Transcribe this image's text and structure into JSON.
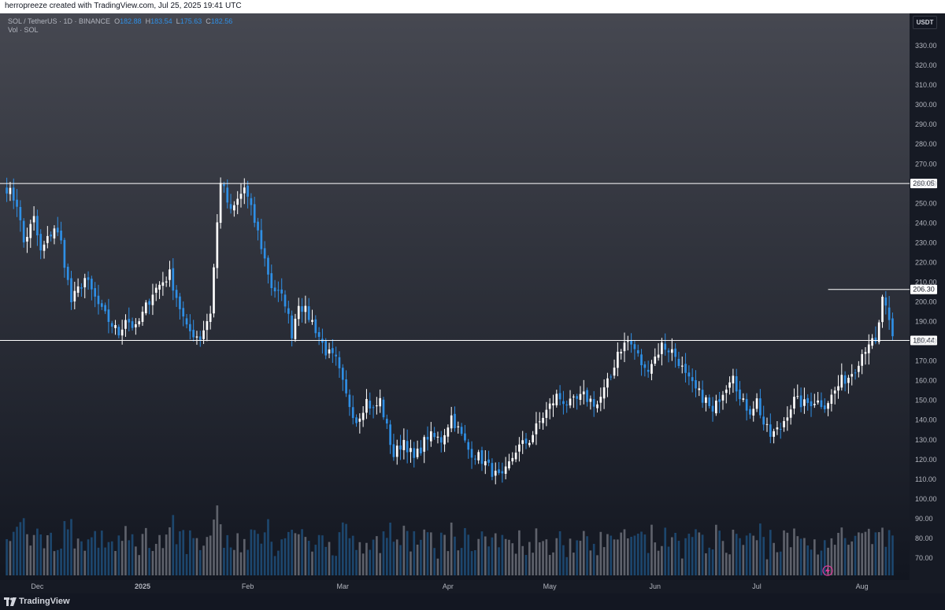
{
  "header": {
    "attribution": "herropreeze created with TradingView.com, Jul 25, 2025 19:41 UTC"
  },
  "footer": {
    "brand": "TradingView"
  },
  "legend": {
    "symbol": "SOL / TetherUS · 1D · BINANCE",
    "open_label": "O",
    "open": "182.88",
    "high_label": "H",
    "high": "183.54",
    "low_label": "L",
    "low": "175.63",
    "close_label": "C",
    "close": "182.56",
    "volume": "Vol · SOL"
  },
  "price_scale": {
    "currency": "USDT"
  },
  "colors": {
    "up": "#ffffff",
    "down": "#2f8fe5",
    "vol_up": "#6b6f78",
    "vol_down": "#1f4f7a",
    "level_line": "#ffffff"
  },
  "chart_data": {
    "type": "candlestick",
    "interval": "1D",
    "ylim": [
      60,
      350
    ],
    "yticks": [
      70,
      80,
      90,
      100,
      110,
      120,
      130,
      140,
      150,
      160,
      170,
      180,
      190,
      200,
      210,
      220,
      230,
      240,
      250,
      260,
      270,
      280,
      290,
      300,
      310,
      320,
      330,
      340
    ],
    "xaxis": {
      "labels": [
        "Dec",
        "2025",
        "Feb",
        "Mar",
        "Apr",
        "May",
        "Jun",
        "Jul",
        "Aug"
      ],
      "label_dates": [
        "2024-12-01",
        "2025-01-01",
        "2025-02-01",
        "2025-03-01",
        "2025-04-01",
        "2025-05-01",
        "2025-06-01",
        "2025-07-01",
        "2025-08-01"
      ],
      "start": "2024-11-20",
      "end": "2025-08-15"
    },
    "start_date": "2024-11-22",
    "horizontal_levels": [
      {
        "price": 260.05,
        "label": "260.05",
        "from": "2024-11-20"
      },
      {
        "price": 206.3,
        "label": "206.30",
        "from": "2025-07-22"
      },
      {
        "price": 180.44,
        "label": "180.44",
        "from": "2024-11-20"
      }
    ],
    "close_anchors": [
      [
        0,
        258
      ],
      [
        3,
        250
      ],
      [
        5,
        230
      ],
      [
        8,
        242
      ],
      [
        10,
        225
      ],
      [
        14,
        238
      ],
      [
        16,
        230
      ],
      [
        19,
        200
      ],
      [
        23,
        212
      ],
      [
        28,
        195
      ],
      [
        33,
        184
      ],
      [
        35,
        192
      ],
      [
        38,
        186
      ],
      [
        43,
        205
      ],
      [
        48,
        214
      ],
      [
        53,
        186
      ],
      [
        57,
        182
      ],
      [
        60,
        195
      ],
      [
        63,
        262
      ],
      [
        66,
        245
      ],
      [
        70,
        258
      ],
      [
        74,
        235
      ],
      [
        78,
        208
      ],
      [
        82,
        200
      ],
      [
        84,
        184
      ],
      [
        86,
        200
      ],
      [
        90,
        190
      ],
      [
        94,
        175
      ],
      [
        97,
        170
      ],
      [
        100,
        152
      ],
      [
        103,
        140
      ],
      [
        106,
        150
      ],
      [
        108,
        145
      ],
      [
        110,
        150
      ],
      [
        114,
        122
      ],
      [
        117,
        130
      ],
      [
        120,
        120
      ],
      [
        124,
        132
      ],
      [
        128,
        130
      ],
      [
        131,
        142
      ],
      [
        136,
        125
      ],
      [
        140,
        120
      ],
      [
        144,
        112
      ],
      [
        146,
        110
      ],
      [
        150,
        125
      ],
      [
        154,
        130
      ],
      [
        158,
        142
      ],
      [
        162,
        152
      ],
      [
        166,
        148
      ],
      [
        170,
        152
      ],
      [
        174,
        148
      ],
      [
        178,
        162
      ],
      [
        180,
        175
      ],
      [
        183,
        180
      ],
      [
        185,
        176
      ],
      [
        188,
        165
      ],
      [
        191,
        172
      ],
      [
        193,
        178
      ],
      [
        196,
        175
      ],
      [
        198,
        170
      ],
      [
        200,
        162
      ],
      [
        203,
        155
      ],
      [
        206,
        150
      ],
      [
        208,
        143
      ],
      [
        210,
        152
      ],
      [
        212,
        158
      ],
      [
        214,
        165
      ],
      [
        216,
        150
      ],
      [
        219,
        145
      ],
      [
        221,
        150
      ],
      [
        223,
        138
      ],
      [
        225,
        132
      ],
      [
        228,
        136
      ],
      [
        230,
        144
      ],
      [
        232,
        150
      ],
      [
        235,
        148
      ],
      [
        238,
        150
      ],
      [
        241,
        148
      ],
      [
        243,
        152
      ],
      [
        246,
        160
      ],
      [
        248,
        162
      ],
      [
        250,
        167
      ],
      [
        252,
        174
      ],
      [
        254,
        180
      ],
      [
        256,
        178
      ],
      [
        257,
        188
      ],
      [
        258,
        203
      ],
      [
        259,
        196
      ],
      [
        260,
        188
      ],
      [
        261,
        182.56
      ]
    ],
    "volume_scale": 100
  }
}
